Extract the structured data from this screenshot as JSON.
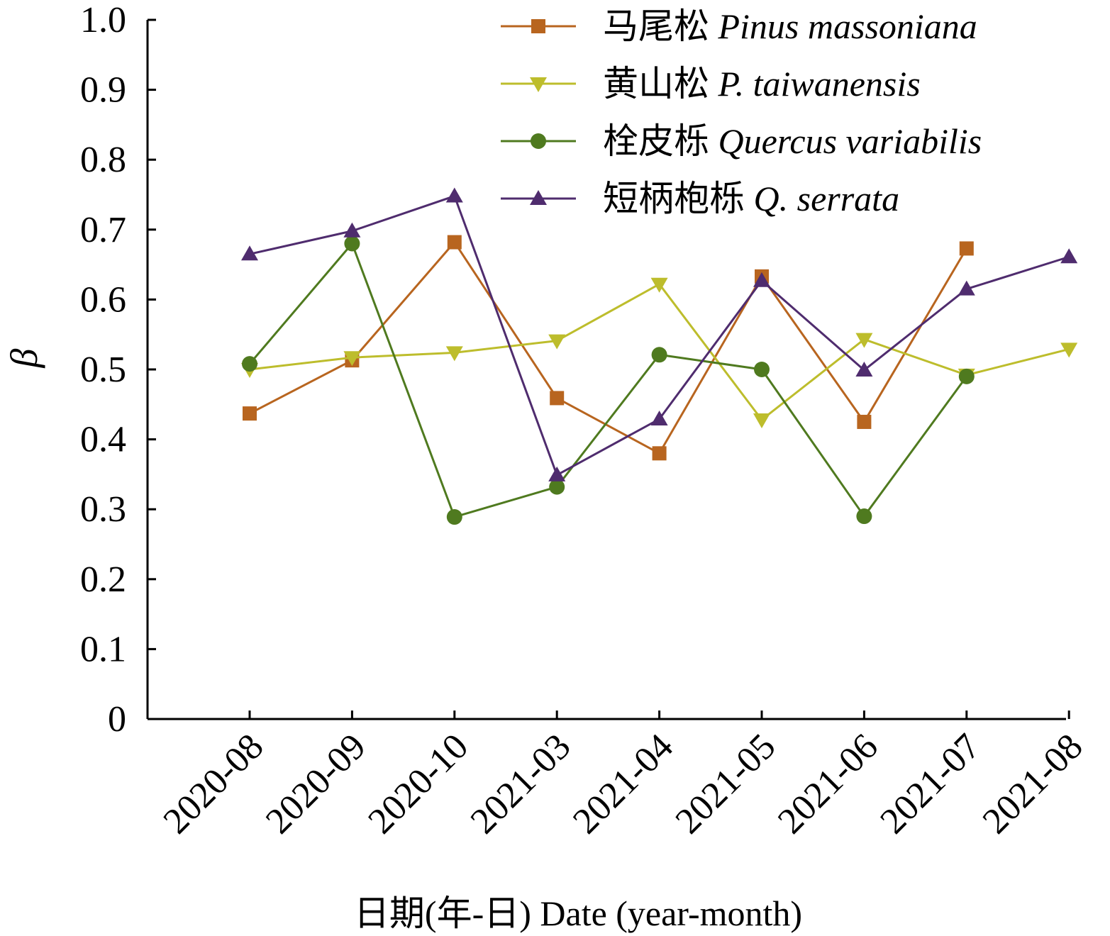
{
  "chart_data": {
    "type": "line",
    "x_categories": [
      "2020-08",
      "2020-09",
      "2020-10",
      "2021-03",
      "2021-04",
      "2021-05",
      "2021-06",
      "2021-07",
      "2021-08"
    ],
    "ylabel": "β",
    "xlabel": "日期(年-日) Date (year-month)",
    "ylim": [
      0,
      1.0
    ],
    "y_ticks": [
      "0",
      "0.1",
      "0.2",
      "0.3",
      "0.4",
      "0.5",
      "0.6",
      "0.7",
      "0.8",
      "0.9",
      "1.0"
    ],
    "grid": false,
    "legend_position": "top-right",
    "series": [
      {
        "name_cn": "马尾松",
        "name_latin": "Pinus massoniana",
        "color": "#B8651F",
        "marker": "square",
        "values": [
          0.437,
          0.513,
          0.682,
          0.459,
          0.38,
          0.633,
          0.425,
          0.673,
          null
        ]
      },
      {
        "name_cn": "黄山松",
        "name_latin": "P. taiwanensis",
        "color": "#BDBD2C",
        "marker": "triangle-down",
        "values": [
          0.5,
          0.517,
          0.524,
          0.541,
          0.622,
          0.428,
          0.543,
          0.492,
          0.529
        ]
      },
      {
        "name_cn": "栓皮栎",
        "name_latin": "Quercus variabilis",
        "color": "#4F7A1F",
        "marker": "circle",
        "values": [
          0.508,
          0.68,
          0.289,
          0.332,
          0.521,
          0.5,
          0.29,
          0.49,
          null
        ]
      },
      {
        "name_cn": "短柄枹栎",
        "name_latin": "Q. serrata",
        "color": "#4F2C6E",
        "marker": "triangle-up",
        "values": [
          0.665,
          0.698,
          0.748,
          0.349,
          0.429,
          0.627,
          0.499,
          0.615,
          0.661
        ]
      }
    ]
  }
}
